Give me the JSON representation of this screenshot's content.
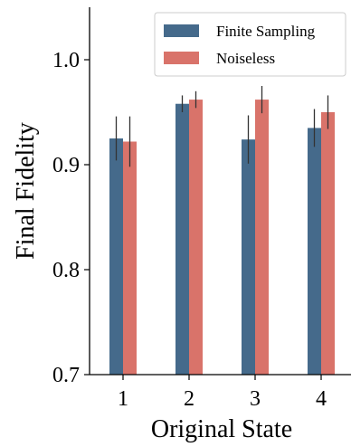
{
  "chart_data": {
    "type": "bar",
    "title": "",
    "xlabel": "Original State",
    "ylabel": "Final Fidelity",
    "categories": [
      "1",
      "2",
      "3",
      "4"
    ],
    "ylim": [
      0.7,
      1.05
    ],
    "yticks": [
      "0.7",
      "0.8",
      "0.9",
      "1.0"
    ],
    "grid": false,
    "legend_position": "top-right",
    "series": [
      {
        "name": "Finite Sampling",
        "color": "#456a8b",
        "values": [
          0.925,
          0.958,
          0.924,
          0.935
        ],
        "error": [
          0.021,
          0.008,
          0.023,
          0.018
        ]
      },
      {
        "name": "Noiseless",
        "color": "#d9736a",
        "values": [
          0.922,
          0.962,
          0.962,
          0.95
        ],
        "error": [
          0.024,
          0.008,
          0.013,
          0.016
        ]
      }
    ]
  }
}
